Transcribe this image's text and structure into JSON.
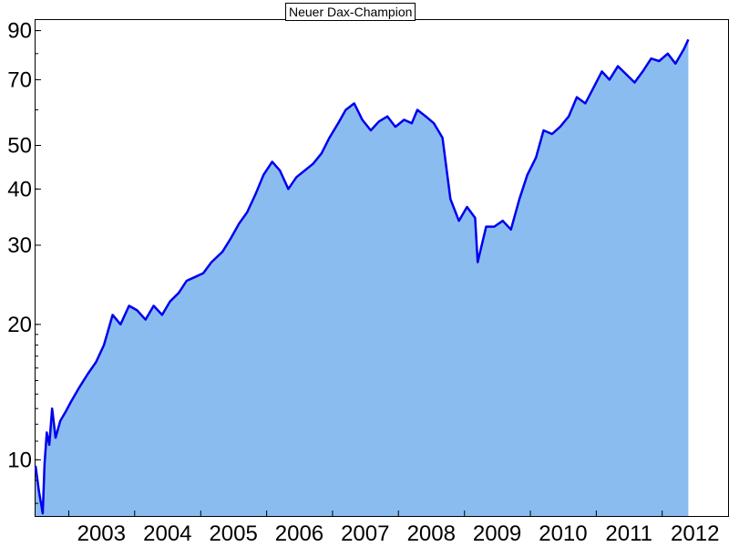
{
  "chart_data": {
    "type": "area",
    "title": "Neuer Dax-Champion",
    "xlabel": "",
    "ylabel": "",
    "y_scale": "log",
    "ylim": [
      7.5,
      95
    ],
    "xlim": [
      "2002-07-01",
      "2012-12-31"
    ],
    "y_ticks_labeled": [
      10,
      20,
      30,
      40,
      50,
      70,
      90
    ],
    "x_tick_labels": [
      "2003",
      "2004",
      "2005",
      "2006",
      "2007",
      "2008",
      "2009",
      "2010",
      "2011",
      "2012"
    ],
    "grid": false,
    "legend": "none",
    "line_color": "#0000ee",
    "fill_color": "#8bbcf0",
    "x": [
      "2002-07-01",
      "2002-07-20",
      "2002-08-10",
      "2002-08-20",
      "2002-09-01",
      "2002-09-15",
      "2002-10-01",
      "2002-10-20",
      "2002-11-15",
      "2002-12-15",
      "2003-01-15",
      "2003-03-01",
      "2003-04-15",
      "2003-06-01",
      "2003-07-15",
      "2003-09-01",
      "2003-10-15",
      "2003-12-01",
      "2004-01-15",
      "2004-03-01",
      "2004-04-15",
      "2004-06-01",
      "2004-07-15",
      "2004-09-01",
      "2004-10-15",
      "2004-12-01",
      "2005-01-15",
      "2005-03-01",
      "2005-05-01",
      "2005-06-15",
      "2005-08-01",
      "2005-09-15",
      "2005-11-01",
      "2005-12-15",
      "2006-02-01",
      "2006-03-15",
      "2006-05-01",
      "2006-06-15",
      "2006-08-01",
      "2006-09-15",
      "2006-11-01",
      "2006-12-15",
      "2007-02-01",
      "2007-03-15",
      "2007-05-01",
      "2007-06-15",
      "2007-08-01",
      "2007-09-15",
      "2007-11-01",
      "2007-12-15",
      "2008-02-01",
      "2008-03-15",
      "2008-04-15",
      "2008-06-01",
      "2008-07-15",
      "2008-09-01",
      "2008-10-15",
      "2008-12-01",
      "2009-01-15",
      "2009-03-01",
      "2009-03-15",
      "2009-05-01",
      "2009-06-15",
      "2009-08-01",
      "2009-09-15",
      "2009-11-01",
      "2009-12-15",
      "2010-02-01",
      "2010-03-15",
      "2010-05-01",
      "2010-06-15",
      "2010-08-01",
      "2010-09-15",
      "2010-11-01",
      "2010-12-15",
      "2011-02-01",
      "2011-03-15",
      "2011-05-01",
      "2011-06-15",
      "2011-08-01",
      "2011-09-15",
      "2011-11-01",
      "2011-12-15",
      "2012-02-01",
      "2012-03-15",
      "2012-05-01",
      "2012-05-25"
    ],
    "values": [
      9.7,
      8.5,
      7.6,
      9.8,
      11.5,
      10.8,
      13.0,
      11.2,
      12.2,
      12.8,
      13.5,
      14.5,
      15.5,
      16.5,
      18.0,
      21.0,
      20.0,
      22.0,
      21.5,
      20.5,
      22.0,
      21.0,
      22.5,
      23.5,
      25.0,
      25.5,
      26.0,
      27.5,
      29.0,
      31.0,
      33.5,
      35.5,
      39.0,
      43.0,
      46.0,
      44.0,
      40.0,
      42.5,
      44.0,
      45.5,
      48.0,
      52.0,
      56.0,
      60.0,
      62.0,
      57.0,
      54.0,
      56.5,
      58.0,
      55.0,
      57.0,
      56.0,
      60.0,
      58.0,
      56.0,
      52.0,
      38.0,
      34.0,
      36.5,
      34.5,
      27.5,
      33.0,
      33.0,
      34.0,
      32.5,
      38.0,
      43.0,
      47.0,
      54.0,
      53.0,
      55.0,
      58.0,
      64.0,
      62.0,
      67.0,
      73.0,
      70.0,
      75.0,
      72.0,
      69.0,
      73.0,
      78.0,
      77.0,
      80.0,
      76.0,
      82.0,
      86.0
    ]
  }
}
